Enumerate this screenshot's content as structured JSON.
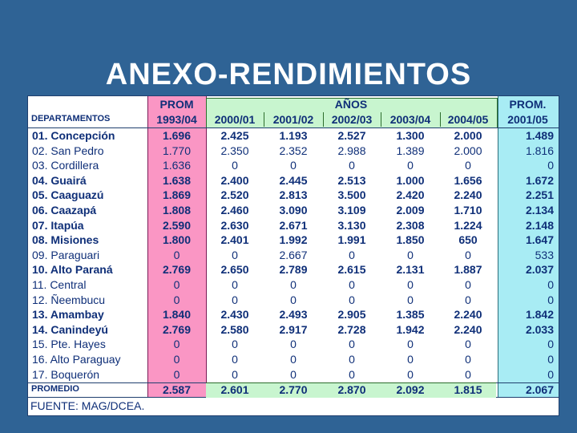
{
  "title": "ANEXO-RENDIMIENTOS",
  "header": {
    "prom_label": "PROM",
    "prom_period": "1993/04",
    "years_label": "AÑOS",
    "years": [
      "2000/01",
      "2001/02",
      "2002/03",
      "2003/04",
      "2004/05"
    ],
    "prom2_label": "PROM.",
    "prom2_period": "2001/05",
    "dept_label": "DEPARTAMENTOS"
  },
  "rows": [
    {
      "dept": "01. Concepción",
      "bold": true,
      "values": [
        "1.696",
        "2.425",
        "1.193",
        "2.527",
        "1.300",
        "2.000",
        "1.489"
      ]
    },
    {
      "dept": "02. San Pedro",
      "bold": false,
      "values": [
        "1.770",
        "2.350",
        "2.352",
        "2.988",
        "1.389",
        "2.000",
        "1.816"
      ]
    },
    {
      "dept": "03. Cordillera",
      "bold": false,
      "values": [
        "1.636",
        "0",
        "0",
        "0",
        "0",
        "0",
        "0"
      ]
    },
    {
      "dept": "04. Guairá",
      "bold": true,
      "values": [
        "1.638",
        "2.400",
        "2.445",
        "2.513",
        "1.000",
        "1.656",
        "1.672"
      ]
    },
    {
      "dept": "05. Caaguazú",
      "bold": true,
      "values": [
        "1.869",
        "2.520",
        "2.813",
        "3.500",
        "2.420",
        "2.240",
        "2.251"
      ]
    },
    {
      "dept": "06. Caazapá",
      "bold": true,
      "values": [
        "1.808",
        "2.460",
        "3.090",
        "3.109",
        "2.009",
        "1.710",
        "2.134"
      ]
    },
    {
      "dept": "07. Itapúa",
      "bold": true,
      "values": [
        "2.590",
        "2.630",
        "2.671",
        "3.130",
        "2.308",
        "1.224",
        "2.148"
      ]
    },
    {
      "dept": "08. Misiones",
      "bold": true,
      "values": [
        "1.800",
        "2.401",
        "1.992",
        "1.991",
        "1.850",
        "650",
        "1.647"
      ]
    },
    {
      "dept": "09. Paraguari",
      "bold": false,
      "values": [
        "0",
        "0",
        "2.667",
        "0",
        "0",
        "0",
        "533"
      ]
    },
    {
      "dept": "10. Alto Paraná",
      "bold": true,
      "values": [
        "2.769",
        "2.650",
        "2.789",
        "2.615",
        "2.131",
        "1.887",
        "2.037"
      ]
    },
    {
      "dept": "11. Central",
      "bold": false,
      "values": [
        "0",
        "0",
        "0",
        "0",
        "0",
        "0",
        "0"
      ]
    },
    {
      "dept": "12. Ñeembucu",
      "bold": false,
      "values": [
        "0",
        "0",
        "0",
        "0",
        "0",
        "0",
        "0"
      ]
    },
    {
      "dept": "13. Amambay",
      "bold": true,
      "values": [
        "1.840",
        "2.430",
        "2.493",
        "2.905",
        "1.385",
        "2.240",
        "1.842"
      ]
    },
    {
      "dept": "14. Canindeyú",
      "bold": true,
      "values": [
        "2.769",
        "2.580",
        "2.917",
        "2.728",
        "1.942",
        "2.240",
        "2.033"
      ]
    },
    {
      "dept": "15. Pte. Hayes",
      "bold": false,
      "values": [
        "0",
        "0",
        "0",
        "0",
        "0",
        "0",
        "0"
      ]
    },
    {
      "dept": "16. Alto Paraguay",
      "bold": false,
      "values": [
        "0",
        "0",
        "0",
        "0",
        "0",
        "0",
        "0"
      ]
    },
    {
      "dept": "17. Boquerón",
      "bold": false,
      "values": [
        "0",
        "0",
        "0",
        "0",
        "0",
        "0",
        "0"
      ]
    }
  ],
  "average": {
    "label": "PROMEDIO",
    "values": [
      "2.587",
      "2.601",
      "2.770",
      "2.870",
      "2.092",
      "1.815",
      "2.067"
    ]
  },
  "source": "FUENTE: MAG/DCEA.",
  "colors": {
    "background": "#2f6395",
    "prom_column": "#fa96c4",
    "years_band": "#c8f5cf",
    "prom2_column": "#a8ecf4",
    "text": "#0f2f78"
  }
}
